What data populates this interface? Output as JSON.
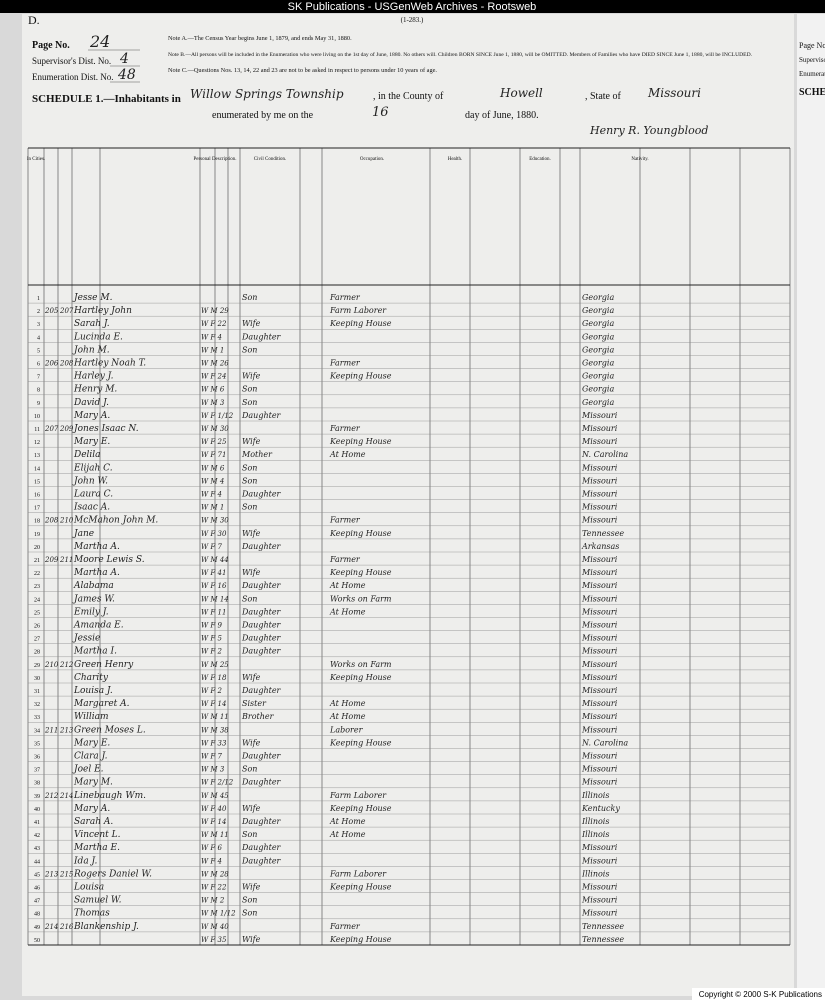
{
  "topbar": {
    "title": "SK Publications - USGenWeb Archives - Rootsweb",
    "form_no": "(1-283.)"
  },
  "header": {
    "sheet_letter": "D.",
    "page_label": "Page No.",
    "page_no": "24",
    "supervisor_label": "Supervisor's Dist. No.",
    "supervisor_no": "4",
    "enumeration_label": "Enumeration Dist. No.",
    "enumeration_no": "48",
    "notes": [
      "Note A.—The Census Year begins June 1, 1879, and ends May 31, 1880.",
      "Note B.—All persons will be included in the Enumeration who were living on the 1st day of June, 1880. No others will. Children BORN SINCE June 1, 1880, will be OMITTED. Members of Families who have DIED SINCE June 1, 1880, will be INCLUDED.",
      "Note C.—Questions Nos. 13, 14, 22 and 23 are not to be asked in respect to persons under 10 years of age."
    ],
    "schedule": "SCHEDULE 1.—Inhabitants in",
    "township": "Willow Springs Township",
    "county_label": ", in the County of",
    "county": "Howell",
    "state_label": ", State of",
    "state": "Missouri",
    "enumerated_label": "enumerated by me on the",
    "day": "16",
    "date_label": "day of June, 1880.",
    "enumerator": "Henry R. Youngblood"
  },
  "table": {
    "headers": [
      "In Cities.",
      "Personal Description.",
      "Civil Condition.",
      "Occupation.",
      "Health.",
      "Education.",
      "Nativity."
    ],
    "rows": [
      [
        "1",
        null,
        null,
        "Jesse M.",
        null,
        "Son",
        "Farmer",
        "Georgia"
      ],
      [
        "2",
        "205",
        "207",
        "Hartley John",
        "W M 29",
        null,
        "Farm Laborer",
        "Georgia"
      ],
      [
        "3",
        null,
        null,
        "Sarah J.",
        "W F 22",
        "Wife",
        "Keeping House",
        "Georgia"
      ],
      [
        "4",
        null,
        null,
        "Lucinda E.",
        "W F 4",
        "Daughter",
        null,
        "Georgia"
      ],
      [
        "5",
        null,
        null,
        "John M.",
        "W M 1",
        "Son",
        null,
        "Georgia"
      ],
      [
        "6",
        "206",
        "208",
        "Hartley Noah T.",
        "W M 26",
        null,
        "Farmer",
        "Georgia"
      ],
      [
        "7",
        null,
        null,
        "Harley J.",
        "W F 24",
        "Wife",
        "Keeping House",
        "Georgia"
      ],
      [
        "8",
        null,
        null,
        "Henry M.",
        "W M 6",
        "Son",
        null,
        "Georgia"
      ],
      [
        "9",
        null,
        null,
        "David J.",
        "W M 3",
        "Son",
        null,
        "Georgia"
      ],
      [
        "10",
        null,
        null,
        "Mary A.",
        "W F 1/12",
        "Daughter",
        null,
        "Missouri"
      ],
      [
        "11",
        "207",
        "209",
        "Jones Isaac N.",
        "W M 30",
        null,
        "Farmer",
        "Missouri"
      ],
      [
        "12",
        null,
        null,
        "Mary E.",
        "W F 25",
        "Wife",
        "Keeping House",
        "Missouri"
      ],
      [
        "13",
        null,
        null,
        "Delila",
        "W F 71",
        "Mother",
        "At Home",
        "N. Carolina"
      ],
      [
        "14",
        null,
        null,
        "Elijah C.",
        "W M 6",
        "Son",
        null,
        "Missouri"
      ],
      [
        "15",
        null,
        null,
        "John W.",
        "W M 4",
        "Son",
        null,
        "Missouri"
      ],
      [
        "16",
        null,
        null,
        "Laura C.",
        "W F 4",
        "Daughter",
        null,
        "Missouri"
      ],
      [
        "17",
        null,
        null,
        "Isaac A.",
        "W M 1",
        "Son",
        null,
        "Missouri"
      ],
      [
        "18",
        "208",
        "210",
        "McMahon John M.",
        "W M 30",
        null,
        "Farmer",
        "Missouri"
      ],
      [
        "19",
        null,
        null,
        "Jane",
        "W F 30",
        "Wife",
        "Keeping House",
        "Tennessee"
      ],
      [
        "20",
        null,
        null,
        "Martha A.",
        "W F 7",
        "Daughter",
        null,
        "Arkansas"
      ],
      [
        "21",
        "209",
        "211",
        "Moore Lewis S.",
        "W M 44",
        null,
        "Farmer",
        "Missouri"
      ],
      [
        "22",
        null,
        null,
        "Martha A.",
        "W F 41",
        "Wife",
        "Keeping House",
        "Missouri"
      ],
      [
        "23",
        null,
        null,
        "Alabama",
        "W F 16",
        "Daughter",
        "At Home",
        "Missouri"
      ],
      [
        "24",
        null,
        null,
        "James W.",
        "W M 14",
        "Son",
        "Works on Farm",
        "Missouri"
      ],
      [
        "25",
        null,
        null,
        "Emily J.",
        "W F 11",
        "Daughter",
        "At Home",
        "Missouri"
      ],
      [
        "26",
        null,
        null,
        "Amanda E.",
        "W F 9",
        "Daughter",
        null,
        "Missouri"
      ],
      [
        "27",
        null,
        null,
        "Jessie",
        "W F 5",
        "Daughter",
        null,
        "Missouri"
      ],
      [
        "28",
        null,
        null,
        "Martha I.",
        "W F 2",
        "Daughter",
        null,
        "Missouri"
      ],
      [
        "29",
        "210",
        "212",
        "Green Henry",
        "W M 25",
        null,
        "Works on Farm",
        "Missouri"
      ],
      [
        "30",
        null,
        null,
        "Charity",
        "W F 18",
        "Wife",
        "Keeping House",
        "Missouri"
      ],
      [
        "31",
        null,
        null,
        "Louisa J.",
        "W F 2",
        "Daughter",
        null,
        "Missouri"
      ],
      [
        "32",
        null,
        null,
        "Margaret A.",
        "W F 14",
        "Sister",
        "At Home",
        "Missouri"
      ],
      [
        "33",
        null,
        null,
        "William",
        "W M 11",
        "Brother",
        "At Home",
        "Missouri"
      ],
      [
        "34",
        "211",
        "213",
        "Green Moses L.",
        "W M 38",
        null,
        "Laborer",
        "Missouri"
      ],
      [
        "35",
        null,
        null,
        "Mary E.",
        "W F 33",
        "Wife",
        "Keeping House",
        "N. Carolina"
      ],
      [
        "36",
        null,
        null,
        "Clara J.",
        "W F 7",
        "Daughter",
        null,
        "Missouri"
      ],
      [
        "37",
        null,
        null,
        "Joel E.",
        "W M 3",
        "Son",
        null,
        "Missouri"
      ],
      [
        "38",
        null,
        null,
        "Mary M.",
        "W F 2/12",
        "Daughter",
        null,
        "Missouri"
      ],
      [
        "39",
        "212",
        "214",
        "Linebaugh Wm.",
        "W M 45",
        null,
        "Farm Laborer",
        "Illinois"
      ],
      [
        "40",
        null,
        null,
        "Mary A.",
        "W F 40",
        "Wife",
        "Keeping House",
        "Kentucky"
      ],
      [
        "41",
        null,
        null,
        "Sarah A.",
        "W F 14",
        "Daughter",
        "At Home",
        "Illinois"
      ],
      [
        "42",
        null,
        null,
        "Vincent L.",
        "W M 11",
        "Son",
        "At Home",
        "Illinois"
      ],
      [
        "43",
        null,
        null,
        "Martha E.",
        "W F 6",
        "Daughter",
        null,
        "Missouri"
      ],
      [
        "44",
        null,
        null,
        "Ida J.",
        "W F 4",
        "Daughter",
        null,
        "Missouri"
      ],
      [
        "45",
        "213",
        "215",
        "Rogers Daniel W.",
        "W M 28",
        null,
        "Farm Laborer",
        "Illinois"
      ],
      [
        "46",
        null,
        null,
        "Louisa",
        "W F 22",
        "Wife",
        "Keeping House",
        "Missouri"
      ],
      [
        "47",
        null,
        null,
        "Samuel W.",
        "W M 2",
        "Son",
        null,
        "Missouri"
      ],
      [
        "48",
        null,
        null,
        "Thomas",
        "W M 1/12",
        "Son",
        null,
        "Missouri"
      ],
      [
        "49",
        "214",
        "216",
        "Blankenship J.",
        "W M 40",
        null,
        "Farmer",
        "Tennessee"
      ],
      [
        "50",
        null,
        null,
        null,
        "W F 35",
        "Wife",
        "Keeping House",
        "Tennessee"
      ]
    ]
  },
  "side_page": {
    "page": "Page No.",
    "supervisor": "Superviso",
    "enumeration": "Enumerati",
    "schedule": "SCHE"
  },
  "footer": {
    "copyright": "Copyright © 2000 S-K Publications"
  }
}
